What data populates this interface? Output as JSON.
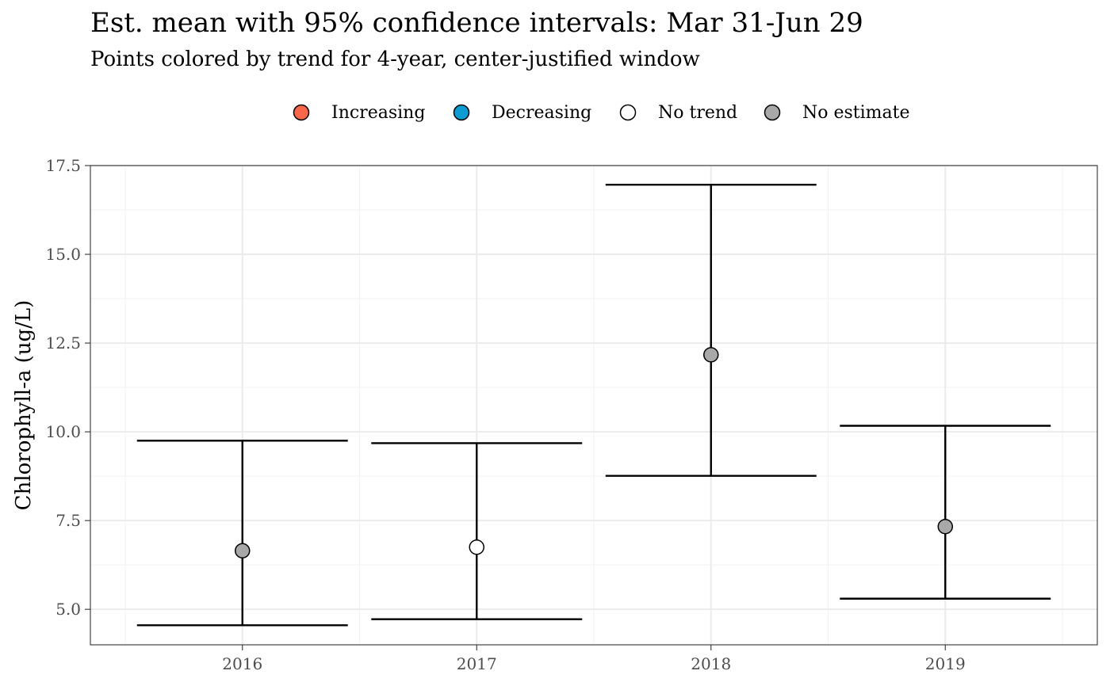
{
  "chart_data": {
    "type": "errorbar",
    "title": "Est. mean with 95% confidence intervals: Mar 31-Jun 29",
    "subtitle": "Points colored by trend for 4-year, center-justified window",
    "xlabel": "",
    "ylabel": "Chlorophyll-a (ug/L)",
    "ylim": [
      4.0,
      17.5
    ],
    "yticks": [
      5.0,
      7.5,
      10.0,
      12.5,
      15.0,
      17.5
    ],
    "ytick_labels": [
      "5.0",
      "7.5",
      "10.0",
      "12.5",
      "15.0",
      "17.5"
    ],
    "categories": [
      "2016",
      "2017",
      "2018",
      "2019"
    ],
    "grid": true,
    "legend_position": "top",
    "legend": [
      {
        "label": "Increasing",
        "color": "#f8674a"
      },
      {
        "label": "Decreasing",
        "color": "#0d9bd2"
      },
      {
        "label": "No trend",
        "color": "#ffffff"
      },
      {
        "label": "No estimate",
        "color": "#a8a8a8"
      }
    ],
    "points": [
      {
        "x": "2016",
        "mean": 6.65,
        "lower": 4.55,
        "upper": 9.75,
        "trend": "No estimate"
      },
      {
        "x": "2017",
        "mean": 6.75,
        "lower": 4.72,
        "upper": 9.68,
        "trend": "No trend"
      },
      {
        "x": "2018",
        "mean": 12.17,
        "lower": 8.76,
        "upper": 16.96,
        "trend": "No estimate"
      },
      {
        "x": "2019",
        "mean": 7.33,
        "lower": 5.3,
        "upper": 10.17,
        "trend": "No estimate"
      }
    ]
  }
}
